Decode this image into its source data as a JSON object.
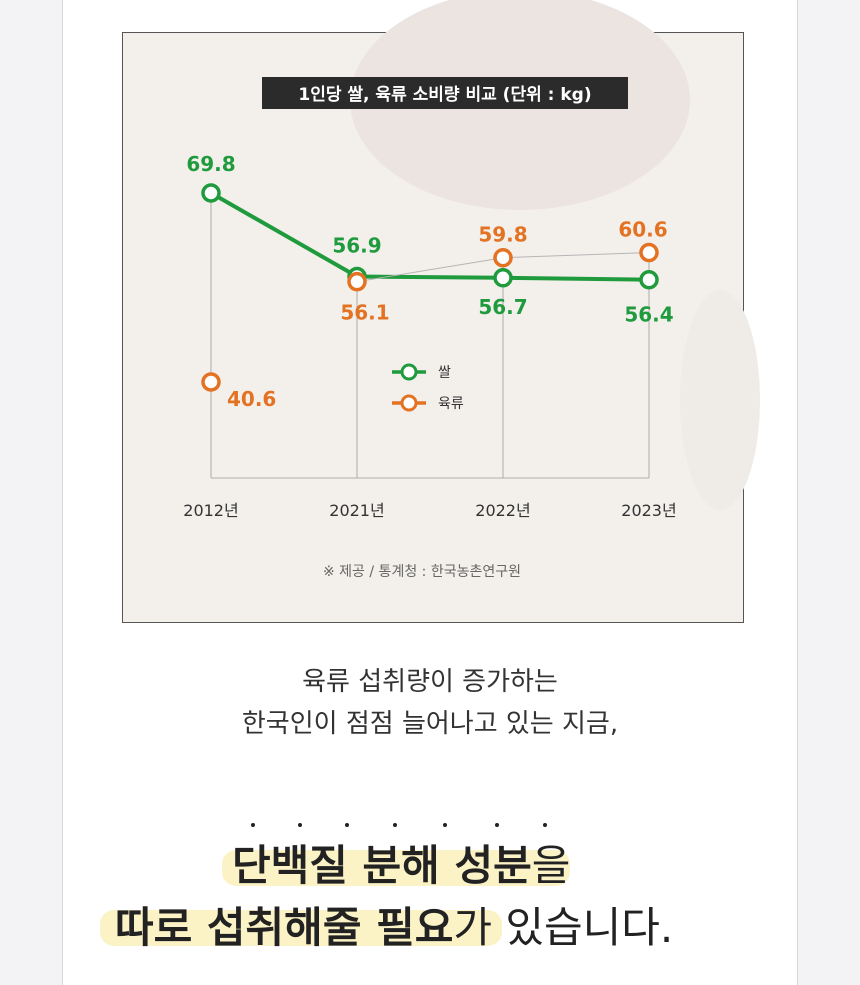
{
  "chart_data": {
    "type": "line",
    "title": "1인당 쌀, 육류 소비량 비교 (단위 : kg)",
    "categories": [
      "2012년",
      "2021년",
      "2022년",
      "2023년"
    ],
    "series": [
      {
        "name": "쌀",
        "color": "#1f9a3d",
        "values": [
          69.8,
          56.9,
          56.7,
          56.4
        ]
      },
      {
        "name": "육류",
        "color": "#e37222",
        "values": [
          40.6,
          56.1,
          59.8,
          60.6
        ]
      }
    ],
    "source": "※ 제공 / 통계청 : 한국농촌연구원"
  },
  "body": {
    "lines": [
      "육류 섭취량이 증가하는",
      "한국인이 점점 늘어나고 있는 지금,"
    ]
  },
  "headline": {
    "line1": {
      "highlight": "단백질 분해 성분",
      "rest": "을"
    },
    "line2": {
      "highlight": "따로 섭취해줄 필요",
      "rest": "가 있습니다."
    }
  }
}
